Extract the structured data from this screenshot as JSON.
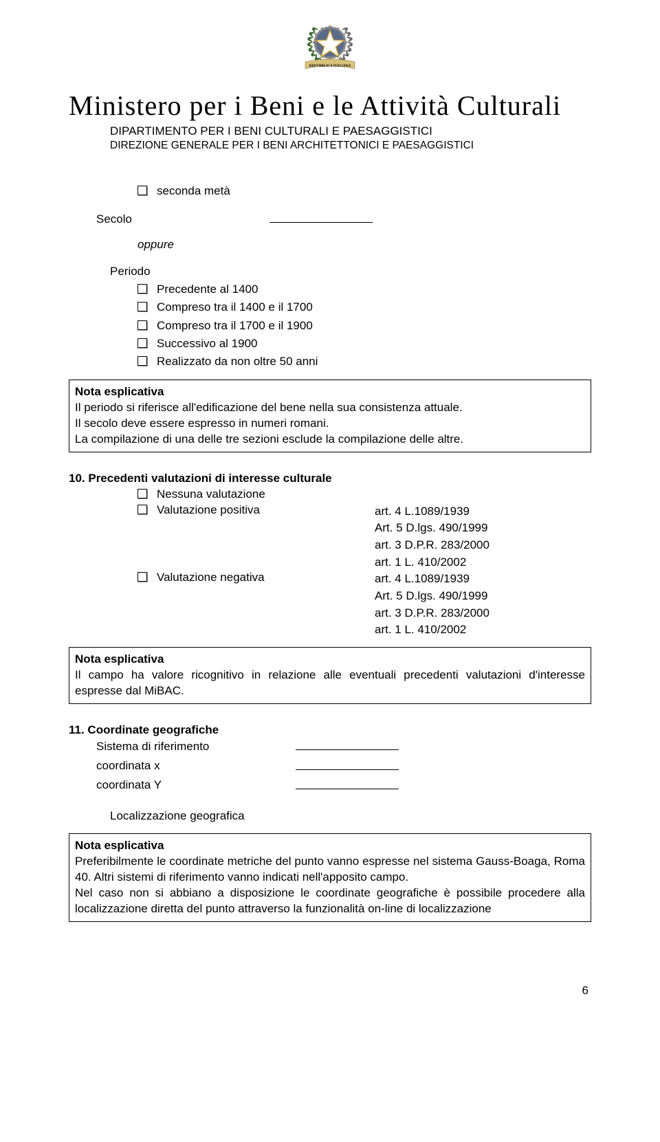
{
  "header": {
    "ministry": "Ministero per i Beni e le Attività Culturali",
    "dept": "DIPARTIMENTO PER I BENI CULTURALI E PAESAGGISTICI",
    "direction": "DIREZIONE GENERALE PER I BENI ARCHITETTONICI E PAESAGGISTICI"
  },
  "emblem": {
    "banner_text": "REPVBBLICA ITALIANA",
    "wreath_left": "#3a6b2f",
    "wreath_right": "#6b6b6b",
    "wheel_fill": "#5b6b8c",
    "wheel_stroke": "#8a8a8a",
    "star_fill": "#ffffff",
    "star_stroke": "#c8a030",
    "banner_fill": "#d9c27a",
    "banner_text_color": "#000000"
  },
  "seconda": {
    "seconda_meta": "seconda metà",
    "secolo_label": "Secolo",
    "oppure": "oppure",
    "periodo_label": "Periodo",
    "items": [
      "Precedente  al 1400",
      "Compreso tra il 1400 e il 1700",
      "Compreso tra il 1700 e il 1900",
      "Successivo al 1900",
      "Realizzato da non oltre 50 anni"
    ]
  },
  "note1": {
    "title": "Nota esplicativa",
    "l1": "Il periodo si riferisce all'edificazione del bene nella sua consistenza attuale.",
    "l2": "Il secolo deve essere espresso in numeri romani.",
    "l3": "La compilazione di una delle tre sezioni esclude la compilazione delle altre."
  },
  "sec10": {
    "heading": "10. Precedenti valutazioni di interesse culturale",
    "nessuna": "Nessuna valutazione",
    "pos_label": "Valutazione positiva",
    "neg_label": "Valutazione negativa",
    "refs": {
      "a": "art. 4 L.1089/1939",
      "b": "Art. 5 D.lgs. 490/1999",
      "c": "art. 3 D.P.R. 283/2000",
      "d": "art. 1 L. 410/2002"
    }
  },
  "note2": {
    "title": "Nota esplicativa",
    "body": "Il campo ha valore ricognitivo in relazione alle eventuali precedenti valutazioni d'interesse espresse dal MiBAC."
  },
  "sec11": {
    "heading": "11. Coordinate geografiche",
    "rows": [
      "Sistema di riferimento",
      "coordinata x",
      "coordinata Y"
    ],
    "loc": "Localizzazione geografica"
  },
  "note3": {
    "title": "Nota esplicativa",
    "p1": "Preferibilmente le coordinate metriche del punto vanno espresse nel sistema Gauss-Boaga, Roma 40. Altri sistemi di riferimento vanno indicati nell'apposito campo.",
    "p2": "Nel caso non si abbiano a disposizione le coordinate geografiche è possibile procedere alla localizzazione diretta del punto attraverso la funzionalità on-line di localizzazione"
  },
  "page_number": "6"
}
